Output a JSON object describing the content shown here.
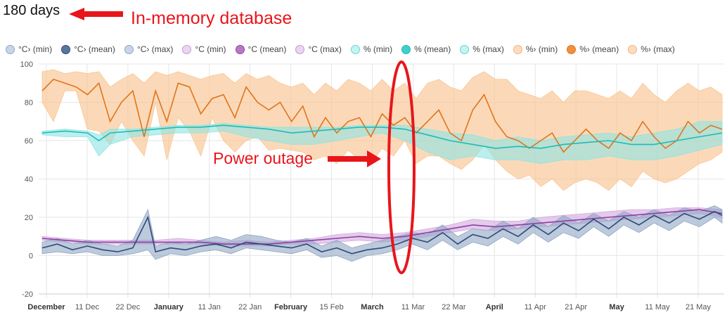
{
  "header": {
    "title": "180 days",
    "annotation": "In-memory database"
  },
  "chart_data": {
    "type": "area",
    "annotation_power": "Power outage",
    "y_ticks": [
      "100",
      "80",
      "60",
      "40",
      "20",
      "0",
      "-20"
    ],
    "ylim": [
      -20,
      100
    ],
    "x_ticks": [
      {
        "label": "December",
        "major": true
      },
      {
        "label": "11 Dec",
        "major": false
      },
      {
        "label": "22 Dec",
        "major": false
      },
      {
        "label": "January",
        "major": true
      },
      {
        "label": "11 Jan",
        "major": false
      },
      {
        "label": "22 Jan",
        "major": false
      },
      {
        "label": "February",
        "major": true
      },
      {
        "label": "15 Feb",
        "major": false
      },
      {
        "label": "March",
        "major": true
      },
      {
        "label": "11 Mar",
        "major": false
      },
      {
        "label": "22 Mar",
        "major": false
      },
      {
        "label": "April",
        "major": true
      },
      {
        "label": "11 Apr",
        "major": false
      },
      {
        "label": "21 Apr",
        "major": false
      },
      {
        "label": "May",
        "major": true
      },
      {
        "label": "11 May",
        "major": false
      },
      {
        "label": "21 May",
        "major": false
      }
    ],
    "legend": [
      {
        "name": "°C› (min)",
        "color": "#8fa6c4",
        "fill": "#c9d5e6"
      },
      {
        "name": "°C› (mean)",
        "color": "#2e4a78",
        "fill": "#5a75a0"
      },
      {
        "name": "°C› (max)",
        "color": "#8fa6c4",
        "fill": "#c9d5e6"
      },
      {
        "name": "°C (min)",
        "color": "#c69ad2",
        "fill": "#ead6f0"
      },
      {
        "name": "°C (mean)",
        "color": "#8e3fa3",
        "fill": "#b57ac5"
      },
      {
        "name": "°C (max)",
        "color": "#c69ad2",
        "fill": "#ead6f0"
      },
      {
        "name": "% (min)",
        "color": "#5fd9d6",
        "fill": "#c6f3f2"
      },
      {
        "name": "% (mean)",
        "color": "#1cbcb9",
        "fill": "#3fd0cc"
      },
      {
        "name": "% (max)",
        "color": "#5fd9d6",
        "fill": "#c6f3f2"
      },
      {
        "name": "%› (min)",
        "color": "#f4b47c",
        "fill": "#fbdcc0"
      },
      {
        "name": "%› (mean)",
        "color": "#e0741c",
        "fill": "#f08f3c"
      },
      {
        "name": "%› (max)",
        "color": "#f4b47c",
        "fill": "#fbdcc0"
      }
    ],
    "x_days": 180,
    "series": [
      {
        "name": "%›",
        "points": [
          [
            0,
            86,
            96,
            80
          ],
          [
            3,
            92,
            97,
            70
          ],
          [
            6,
            90,
            95,
            86
          ],
          [
            9,
            88,
            96,
            86
          ],
          [
            12,
            84,
            95,
            66
          ],
          [
            15,
            90,
            96,
            65
          ],
          [
            18,
            70,
            88,
            58
          ],
          [
            21,
            80,
            92,
            70
          ],
          [
            24,
            86,
            95,
            60
          ],
          [
            27,
            62,
            90,
            52
          ],
          [
            30,
            86,
            96,
            80
          ],
          [
            33,
            70,
            94,
            50
          ],
          [
            36,
            90,
            96,
            72
          ],
          [
            39,
            88,
            94,
            65
          ],
          [
            42,
            74,
            92,
            52
          ],
          [
            45,
            82,
            94,
            72
          ],
          [
            48,
            84,
            95,
            60
          ],
          [
            51,
            72,
            90,
            54
          ],
          [
            54,
            88,
            95,
            60
          ],
          [
            57,
            80,
            92,
            62
          ],
          [
            60,
            76,
            94,
            55
          ],
          [
            63,
            80,
            90,
            56
          ],
          [
            66,
            70,
            88,
            55
          ],
          [
            69,
            78,
            90,
            54
          ],
          [
            72,
            62,
            84,
            50
          ],
          [
            75,
            72,
            90,
            52
          ],
          [
            78,
            64,
            86,
            48
          ],
          [
            81,
            70,
            92,
            55
          ],
          [
            84,
            72,
            90,
            50
          ],
          [
            87,
            62,
            86,
            48
          ],
          [
            90,
            74,
            92,
            56
          ],
          [
            93,
            68,
            86,
            52
          ],
          [
            96,
            72,
            90,
            60
          ],
          [
            99,
            64,
            82,
            48
          ],
          [
            102,
            70,
            90,
            52
          ],
          [
            105,
            76,
            92,
            52
          ],
          [
            108,
            64,
            88,
            48
          ],
          [
            111,
            60,
            86,
            45
          ],
          [
            114,
            76,
            93,
            50
          ],
          [
            117,
            84,
            96,
            58
          ],
          [
            120,
            70,
            92,
            50
          ],
          [
            123,
            62,
            92,
            44
          ],
          [
            126,
            60,
            86,
            40
          ],
          [
            129,
            56,
            84,
            42
          ],
          [
            132,
            60,
            82,
            36
          ],
          [
            135,
            64,
            86,
            40
          ],
          [
            138,
            54,
            80,
            34
          ],
          [
            141,
            60,
            86,
            38
          ],
          [
            144,
            66,
            86,
            40
          ],
          [
            147,
            60,
            84,
            38
          ],
          [
            150,
            56,
            82,
            34
          ],
          [
            153,
            64,
            86,
            40
          ],
          [
            156,
            60,
            82,
            36
          ],
          [
            159,
            70,
            90,
            44
          ],
          [
            162,
            62,
            84,
            40
          ],
          [
            165,
            56,
            80,
            38
          ],
          [
            168,
            60,
            86,
            40
          ],
          [
            171,
            70,
            90,
            44
          ],
          [
            174,
            64,
            86,
            48
          ],
          [
            177,
            68,
            88,
            50
          ],
          [
            180,
            66,
            84,
            54
          ]
        ]
      },
      {
        "name": "%",
        "points": [
          [
            0,
            64,
            65,
            63
          ],
          [
            6,
            65,
            66,
            62
          ],
          [
            12,
            64,
            65,
            62
          ],
          [
            15,
            60,
            63,
            52
          ],
          [
            18,
            64,
            66,
            58
          ],
          [
            24,
            65,
            66,
            62
          ],
          [
            30,
            66,
            67,
            63
          ],
          [
            36,
            67,
            68,
            64
          ],
          [
            42,
            67,
            68,
            64
          ],
          [
            48,
            68,
            69,
            65
          ],
          [
            54,
            67,
            68,
            62
          ],
          [
            60,
            66,
            67,
            60
          ],
          [
            66,
            64,
            67,
            58
          ],
          [
            72,
            65,
            67,
            58
          ],
          [
            78,
            66,
            67,
            60
          ],
          [
            84,
            67,
            68,
            62
          ],
          [
            90,
            67,
            68,
            64
          ],
          [
            96,
            66,
            68,
            60
          ],
          [
            102,
            63,
            66,
            54
          ],
          [
            108,
            60,
            64,
            50
          ],
          [
            114,
            58,
            63,
            52
          ],
          [
            120,
            56,
            60,
            50
          ],
          [
            126,
            57,
            62,
            50
          ],
          [
            132,
            56,
            60,
            48
          ],
          [
            138,
            58,
            62,
            50
          ],
          [
            144,
            59,
            63,
            50
          ],
          [
            150,
            60,
            64,
            52
          ],
          [
            156,
            58,
            62,
            50
          ],
          [
            162,
            58,
            64,
            50
          ],
          [
            168,
            60,
            66,
            52
          ],
          [
            174,
            62,
            70,
            55
          ],
          [
            180,
            64,
            70,
            58
          ]
        ]
      },
      {
        "name": "°C",
        "points": [
          [
            0,
            9,
            10,
            8
          ],
          [
            6,
            8,
            9,
            7
          ],
          [
            12,
            7,
            8,
            6
          ],
          [
            18,
            7,
            8,
            6
          ],
          [
            24,
            7,
            8,
            6
          ],
          [
            30,
            7,
            8,
            6
          ],
          [
            36,
            7,
            9,
            6
          ],
          [
            42,
            7,
            8,
            6
          ],
          [
            48,
            6,
            7,
            5
          ],
          [
            54,
            6,
            8,
            5
          ],
          [
            60,
            6,
            7,
            5
          ],
          [
            66,
            7,
            8,
            6
          ],
          [
            72,
            8,
            9,
            6
          ],
          [
            78,
            9,
            11,
            7
          ],
          [
            84,
            10,
            12,
            8
          ],
          [
            90,
            9,
            11,
            7
          ],
          [
            96,
            10,
            12,
            8
          ],
          [
            102,
            12,
            14,
            10
          ],
          [
            108,
            14,
            16,
            12
          ],
          [
            114,
            16,
            19,
            14
          ],
          [
            120,
            15,
            18,
            13
          ],
          [
            126,
            16,
            18,
            14
          ],
          [
            132,
            17,
            20,
            15
          ],
          [
            138,
            18,
            21,
            16
          ],
          [
            144,
            19,
            22,
            17
          ],
          [
            150,
            20,
            23,
            18
          ],
          [
            156,
            21,
            24,
            19
          ],
          [
            162,
            22,
            24,
            20
          ],
          [
            168,
            23,
            25,
            21
          ],
          [
            174,
            24,
            25,
            22
          ],
          [
            180,
            22,
            24,
            20
          ]
        ]
      },
      {
        "name": "°C›",
        "points": [
          [
            0,
            4,
            7,
            1
          ],
          [
            4,
            6,
            9,
            2
          ],
          [
            8,
            3,
            6,
            1
          ],
          [
            12,
            5,
            8,
            2
          ],
          [
            16,
            3,
            6,
            0
          ],
          [
            20,
            2,
            5,
            0
          ],
          [
            24,
            4,
            8,
            1
          ],
          [
            28,
            20,
            24,
            3
          ],
          [
            30,
            2,
            5,
            -2
          ],
          [
            34,
            4,
            7,
            1
          ],
          [
            38,
            3,
            6,
            0
          ],
          [
            42,
            5,
            8,
            2
          ],
          [
            46,
            6,
            10,
            3
          ],
          [
            50,
            4,
            8,
            1
          ],
          [
            54,
            7,
            11,
            4
          ],
          [
            58,
            6,
            10,
            3
          ],
          [
            62,
            5,
            8,
            2
          ],
          [
            66,
            4,
            7,
            1
          ],
          [
            70,
            6,
            9,
            3
          ],
          [
            74,
            2,
            5,
            -1
          ],
          [
            78,
            4,
            8,
            0
          ],
          [
            82,
            1,
            4,
            -3
          ],
          [
            86,
            3,
            6,
            0
          ],
          [
            90,
            4,
            8,
            1
          ],
          [
            94,
            6,
            10,
            3
          ],
          [
            98,
            9,
            12,
            6
          ],
          [
            102,
            7,
            11,
            3
          ],
          [
            106,
            12,
            16,
            8
          ],
          [
            110,
            6,
            10,
            3
          ],
          [
            114,
            11,
            14,
            7
          ],
          [
            118,
            9,
            13,
            5
          ],
          [
            122,
            14,
            18,
            10
          ],
          [
            126,
            10,
            14,
            6
          ],
          [
            130,
            16,
            20,
            12
          ],
          [
            134,
            11,
            15,
            7
          ],
          [
            138,
            17,
            21,
            12
          ],
          [
            142,
            13,
            17,
            9
          ],
          [
            146,
            19,
            22,
            15
          ],
          [
            150,
            14,
            18,
            10
          ],
          [
            154,
            20,
            23,
            16
          ],
          [
            158,
            16,
            20,
            12
          ],
          [
            162,
            21,
            24,
            17
          ],
          [
            166,
            17,
            21,
            13
          ],
          [
            170,
            22,
            25,
            18
          ],
          [
            174,
            19,
            23,
            15
          ],
          [
            178,
            23,
            26,
            20
          ],
          [
            180,
            21,
            24,
            17
          ]
        ]
      }
    ]
  }
}
